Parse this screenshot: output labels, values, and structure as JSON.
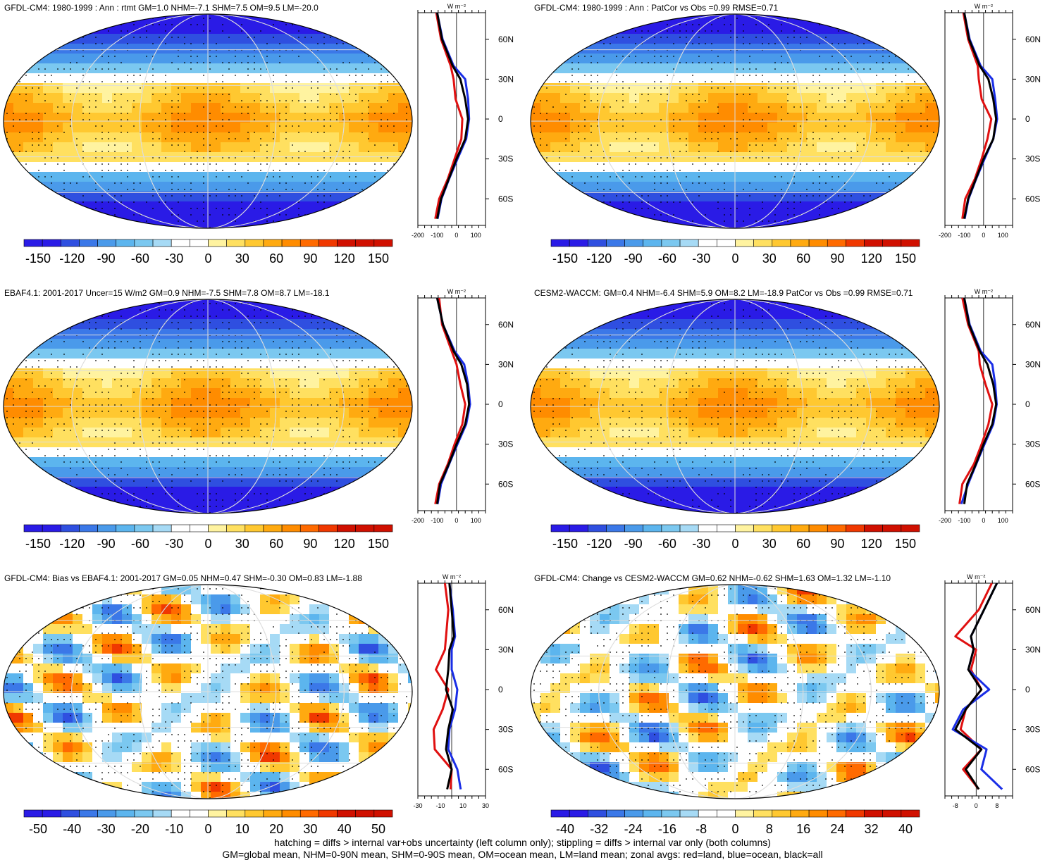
{
  "colors": {
    "cool": [
      "#2a1be6",
      "#2f4fe0",
      "#3b78e8",
      "#4a9aea",
      "#5cb5ee",
      "#7bc8f0",
      "#a6daf5"
    ],
    "warm": [
      "#fff3a0",
      "#ffe060",
      "#ffc830",
      "#ffaa10",
      "#ff8c00",
      "#ff6a00",
      "#f03800",
      "#d01000"
    ],
    "land": "#e01010",
    "ocean": "#1a2ee6",
    "all": "#000000"
  },
  "panels": [
    {
      "title": "GFDL-CM4: 1980-1999 : Ann : rtmt GM=1.0 NHM=-7.1 SHM=7.5 OM=9.5 LM=-20.0",
      "colorbar": [
        "-150",
        "-120",
        "-90",
        "-60",
        "-30",
        "0",
        "30",
        "60",
        "90",
        "120",
        "150"
      ],
      "profile_ticks": [
        "-200",
        "-100",
        "0",
        "100"
      ],
      "profile_unit": "W m⁻²",
      "lat_labels": [
        "60N",
        "30N",
        "0",
        "30S",
        "60S"
      ]
    },
    {
      "title": "GFDL-CM4: 1980-1999 : Ann : PatCor vs Obs =0.99 RMSE=0.71",
      "colorbar": [
        "-150",
        "-120",
        "-90",
        "-60",
        "-30",
        "0",
        "30",
        "60",
        "90",
        "120",
        "150"
      ],
      "profile_ticks": [
        "-200",
        "-100",
        "0",
        "100"
      ],
      "profile_unit": "W m⁻²",
      "lat_labels": [
        "60N",
        "30N",
        "0",
        "30S",
        "60S"
      ]
    },
    {
      "title": "EBAF4.1: 2001-2017 Uncer=15 W/m2 GM=0.9 NHM=-7.5 SHM=7.8 OM=8.7 LM=-18.1",
      "colorbar": [
        "-150",
        "-120",
        "-90",
        "-60",
        "-30",
        "0",
        "30",
        "60",
        "90",
        "120",
        "150"
      ],
      "profile_ticks": [
        "-200",
        "-100",
        "0",
        "100"
      ],
      "profile_unit": "W m⁻²",
      "lat_labels": [
        "60N",
        "30N",
        "0",
        "30S",
        "60S"
      ]
    },
    {
      "title": "CESM2-WACCM: GM=0.4 NHM=-6.4 SHM=5.9 OM=8.2 LM=-18.9 PatCor vs Obs =0.99 RMSE=0.71",
      "colorbar": [
        "-150",
        "-120",
        "-90",
        "-60",
        "-30",
        "0",
        "30",
        "60",
        "90",
        "120",
        "150"
      ],
      "profile_ticks": [
        "-200",
        "-100",
        "0",
        "100"
      ],
      "profile_unit": "W m⁻²",
      "lat_labels": [
        "60N",
        "30N",
        "0",
        "30S",
        "60S"
      ]
    },
    {
      "title": "GFDL-CM4: Bias vs EBAF4.1: 2001-2017 GM=0.05 NHM=0.47 SHM=-0.30 OM=0.83 LM=-1.88",
      "colorbar": [
        "-50",
        "-40",
        "-30",
        "-20",
        "-10",
        "0",
        "10",
        "20",
        "30",
        "40",
        "50"
      ],
      "profile_ticks": [
        "-30",
        "-10",
        "10",
        "30"
      ],
      "profile_unit": "W m⁻²",
      "lat_labels": [
        "60N",
        "30N",
        "0",
        "30S",
        "60S"
      ]
    },
    {
      "title": "GFDL-CM4: Change vs CESM2-WACCM GM=0.62 NHM=-0.62 SHM=1.63 OM=1.32 LM=-1.10",
      "colorbar": [
        "-40",
        "-32",
        "-24",
        "-16",
        "-8",
        "0",
        "8",
        "16",
        "24",
        "32",
        "40"
      ],
      "profile_ticks": [
        "-8",
        "0",
        "8"
      ],
      "profile_unit": "W m⁻²",
      "lat_labels": [
        "60N",
        "30N",
        "0",
        "30S",
        "60S"
      ]
    }
  ],
  "footer": {
    "line1": "hatching = diffs > internal var+obs uncertainty (left column only); stippling = diffs > internal var only (both columns)",
    "line2": "GM=global mean, NHM=0-90N mean, SHM=0-90S mean, OM=ocean mean, LM=land mean; zonal avgs: red=land, blue=ocean, black=all"
  },
  "chart_data": [
    {
      "type": "heatmap",
      "title": "GFDL-CM4: 1980-1999 : Ann : rtmt GM=1.0 NHM=-7.1 SHM=7.5 OM=9.5 LM=-20.0",
      "colorbar_range": [
        -150,
        150
      ],
      "zonal_profile": {
        "lat": [
          80,
          60,
          40,
          30,
          15,
          0,
          -15,
          -30,
          -45,
          -60,
          -75
        ],
        "all": [
          -100,
          -75,
          -20,
          20,
          45,
          60,
          45,
          0,
          -40,
          -80,
          -100
        ],
        "land": [
          -105,
          -80,
          -30,
          -15,
          -5,
          30,
          25,
          -10,
          -45,
          -90,
          -110
        ],
        "ocean": [
          -100,
          -72,
          -15,
          45,
          60,
          65,
          50,
          5,
          -38,
          -78,
          -98
        ]
      }
    },
    {
      "type": "heatmap",
      "title": "GFDL-CM4: 1980-1999 : Ann : PatCor vs Obs =0.99 RMSE=0.71",
      "colorbar_range": [
        -150,
        150
      ],
      "zonal_profile": {
        "lat": [
          80,
          60,
          40,
          30,
          15,
          0,
          -15,
          -30,
          -45,
          -60,
          -75
        ],
        "all": [
          -100,
          -75,
          -20,
          25,
          50,
          65,
          50,
          0,
          -40,
          -80,
          -100
        ],
        "land": [
          -105,
          -80,
          -30,
          -25,
          -10,
          40,
          20,
          -10,
          -45,
          -95,
          -110
        ],
        "ocean": [
          -100,
          -72,
          -15,
          45,
          60,
          70,
          50,
          5,
          -38,
          -78,
          -98
        ]
      }
    },
    {
      "type": "heatmap",
      "title": "EBAF4.1: 2001-2017 Uncer=15 W/m2 GM=0.9 NHM=-7.5 SHM=7.8 OM=8.7 LM=-18.1",
      "colorbar_range": [
        -150,
        150
      ],
      "zonal_profile": {
        "lat": [
          80,
          60,
          40,
          30,
          15,
          0,
          -15,
          -30,
          -45,
          -60,
          -75
        ],
        "all": [
          -100,
          -70,
          -15,
          25,
          55,
          65,
          45,
          0,
          -40,
          -85,
          -100
        ],
        "land": [
          -90,
          -75,
          -25,
          0,
          20,
          45,
          30,
          -10,
          -45,
          -90,
          -110
        ],
        "ocean": [
          -100,
          -70,
          -10,
          40,
          60,
          70,
          50,
          5,
          -38,
          -80,
          -98
        ]
      }
    },
    {
      "type": "heatmap",
      "title": "CESM2-WACCM: GM=0.4 NHM=-6.4 SHM=5.9 OM=8.2 LM=-18.9 PatCor vs Obs =0.99 RMSE=0.71",
      "colorbar_range": [
        -150,
        150
      ],
      "zonal_profile": {
        "lat": [
          80,
          60,
          40,
          30,
          15,
          0,
          -15,
          -30,
          -45,
          -60,
          -75
        ],
        "all": [
          -100,
          -75,
          -20,
          20,
          50,
          65,
          45,
          0,
          -40,
          -85,
          -100
        ],
        "land": [
          -110,
          -80,
          -25,
          -20,
          10,
          45,
          25,
          -10,
          -50,
          -110,
          -125
        ],
        "ocean": [
          -100,
          -72,
          -15,
          45,
          60,
          68,
          50,
          5,
          -38,
          -80,
          -115
        ]
      }
    },
    {
      "type": "heatmap",
      "title": "GFDL-CM4: Bias vs EBAF4.1: 2001-2017 GM=0.05 NHM=0.47 SHM=-0.30 OM=0.83 LM=-1.88",
      "colorbar_range": [
        -50,
        50
      ],
      "zonal_profile": {
        "lat": [
          80,
          60,
          40,
          30,
          15,
          0,
          -15,
          -30,
          -45,
          -60,
          -75
        ],
        "all": [
          -2,
          0,
          2,
          -2,
          -3,
          -5,
          1,
          -3,
          -5,
          0,
          -4
        ],
        "land": [
          -6,
          -3,
          -5,
          -6,
          -14,
          -3,
          -8,
          -16,
          -15,
          0,
          -1
        ],
        "ocean": [
          -2,
          1,
          3,
          0,
          0,
          5,
          3,
          -2,
          -3,
          5,
          8
        ]
      }
    },
    {
      "type": "heatmap",
      "title": "GFDL-CM4: Change vs CESM2-WACCM GM=0.62 NHM=-0.62 SHM=1.63 OM=1.32 LM=-1.10",
      "colorbar_range": [
        -40,
        40
      ],
      "zonal_profile": {
        "lat": [
          80,
          60,
          40,
          30,
          15,
          0,
          -15,
          -30,
          -45,
          -60,
          -75
        ],
        "all": [
          8,
          3,
          -2,
          -1,
          -3,
          2,
          -4,
          -8,
          2,
          -4,
          1
        ],
        "land": [
          6,
          1,
          -8,
          0,
          -2,
          2,
          -4,
          -6,
          2,
          -5,
          1
        ],
        "ocean": [
          8,
          3,
          -2,
          -1,
          -3,
          5,
          -5,
          -9,
          4,
          2,
          10
        ]
      }
    }
  ]
}
